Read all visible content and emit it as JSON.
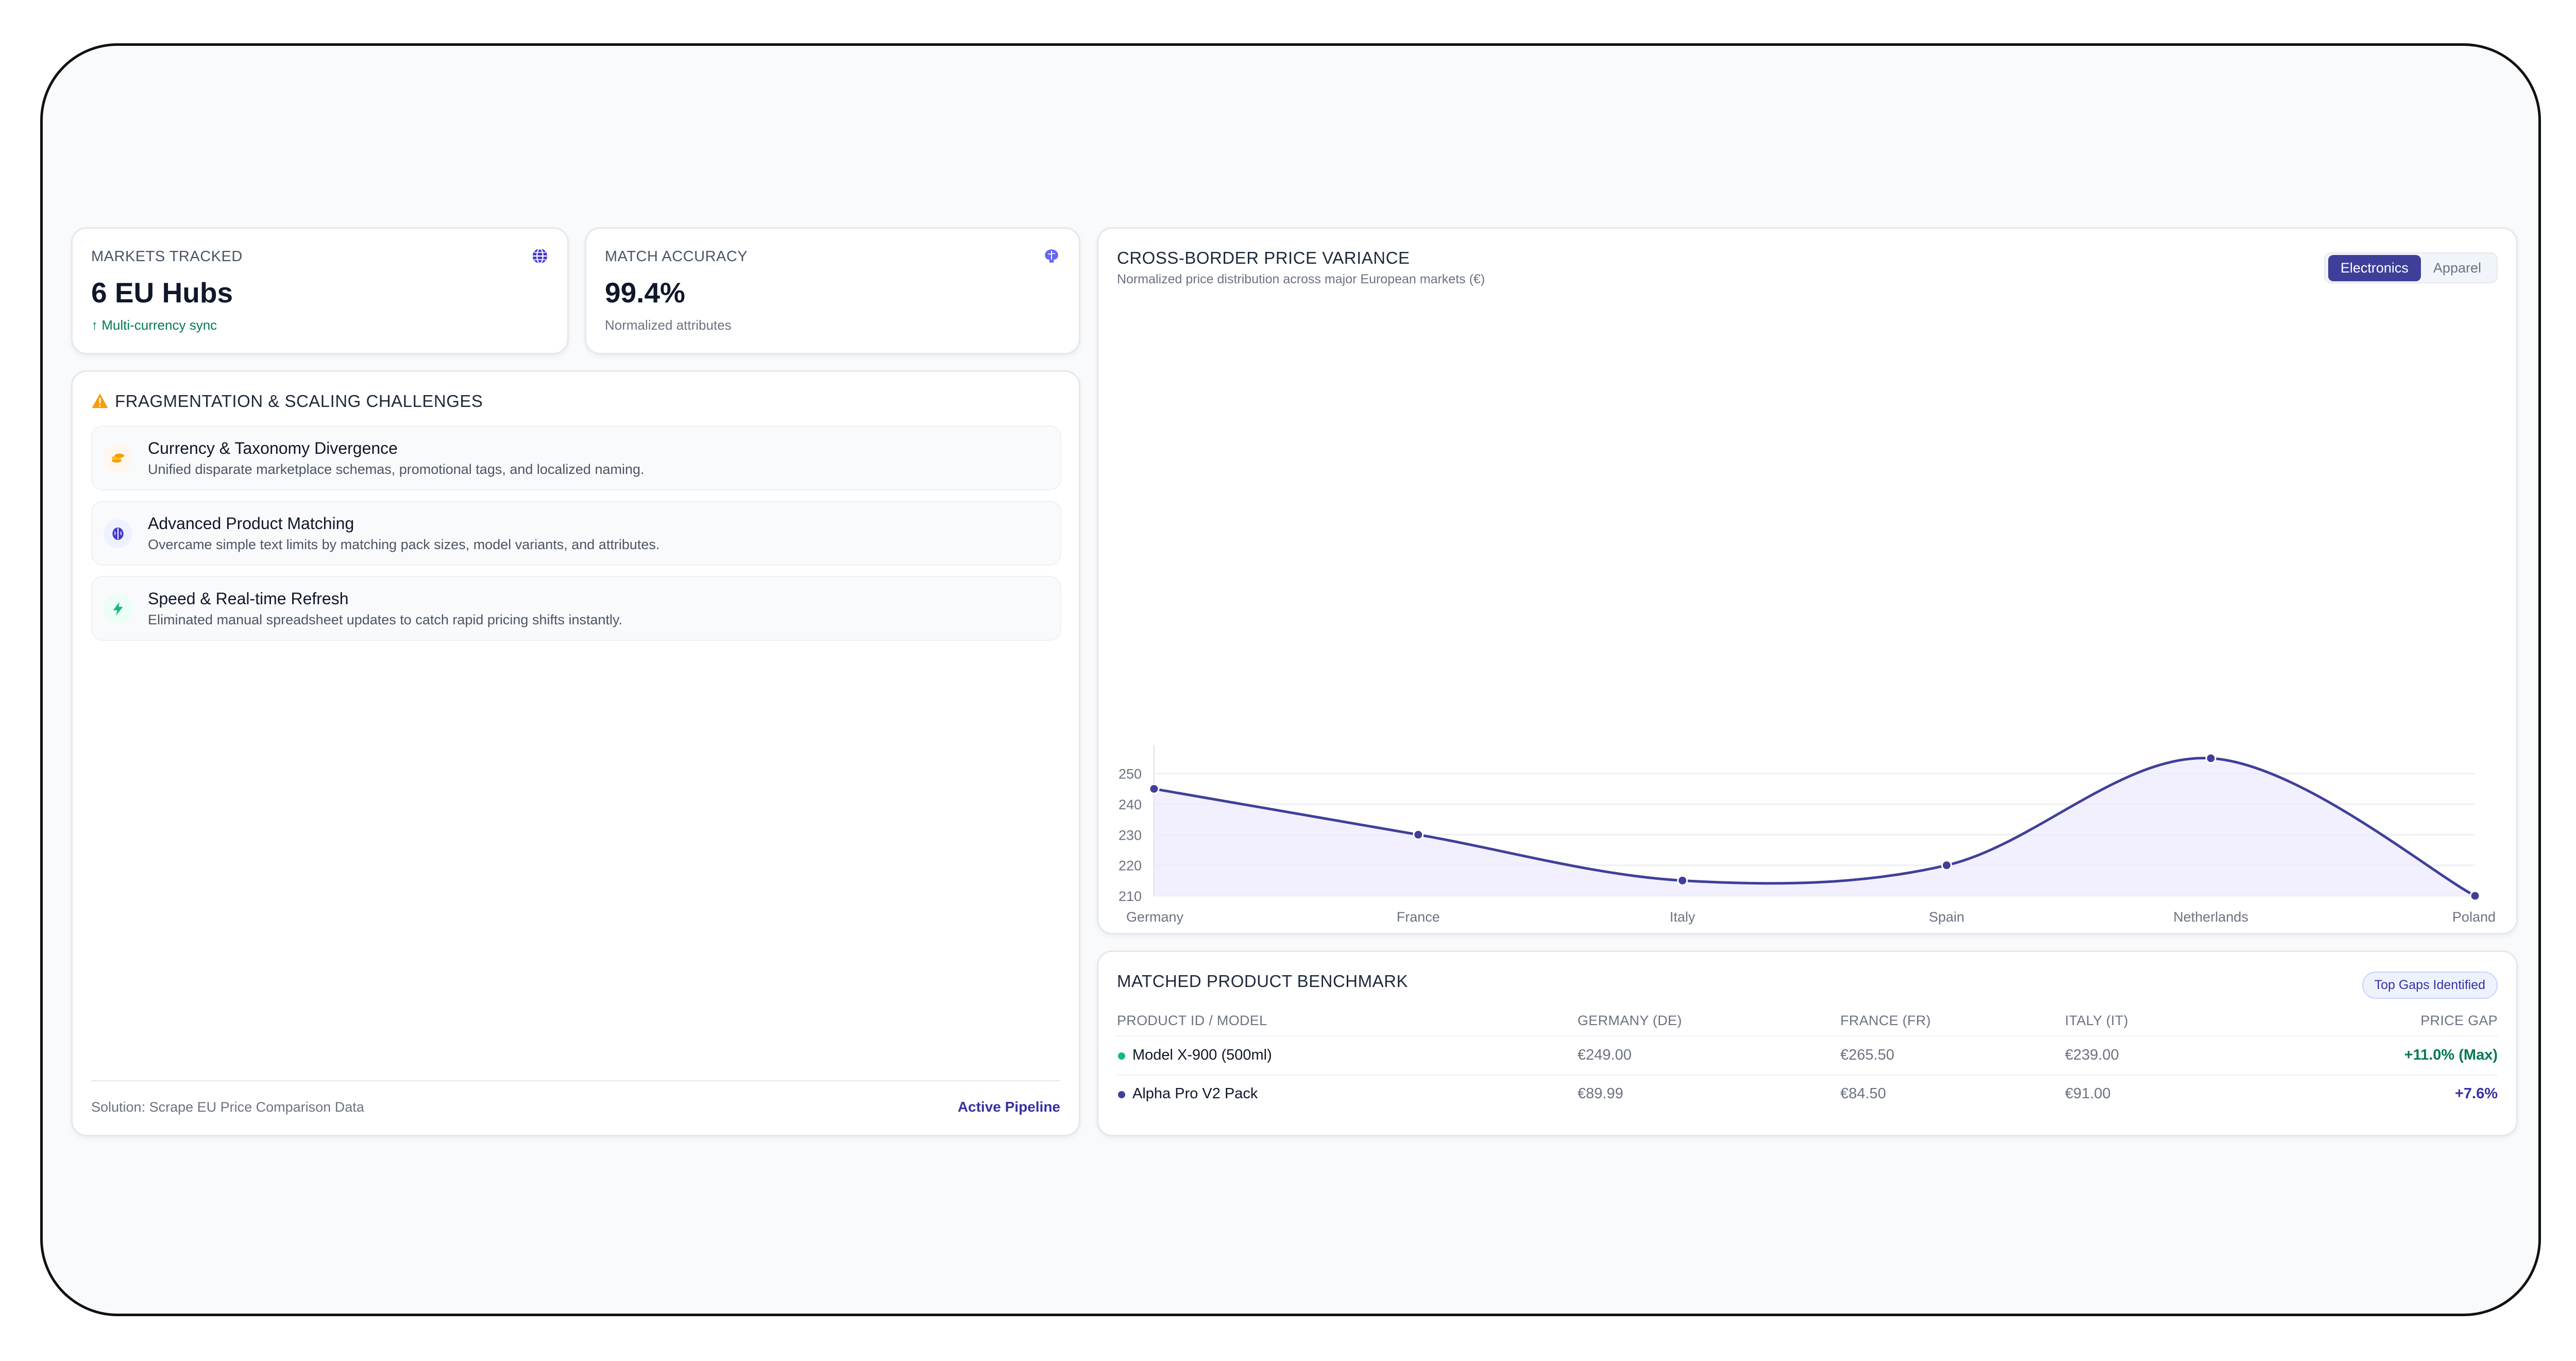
{
  "kpis": [
    {
      "label": "MARKETS TRACKED",
      "value": "6 EU Hubs",
      "sub": "↑ Multi-currency sync",
      "icon": "globe-icon"
    },
    {
      "label": "MATCH ACCURACY",
      "value": "99.4%",
      "sub": "Normalized attributes",
      "icon": "brain-icon"
    }
  ],
  "challenges": {
    "title": "FRAGMENTATION & SCALING CHALLENGES",
    "items": [
      {
        "title": "Currency & Taxonomy Divergence",
        "desc": "Unified disparate marketplace schemas, promotional tags, and localized naming.",
        "icon": "coins-icon"
      },
      {
        "title": "Advanced Product Matching",
        "desc": "Overcame simple text limits by matching pack sizes, model variants, and attributes.",
        "icon": "brain-icon"
      },
      {
        "title": "Speed & Real-time Refresh",
        "desc": "Eliminated manual spreadsheet updates to catch rapid pricing shifts instantly.",
        "icon": "bolt-icon"
      }
    ],
    "footer_left": "Solution: Scrape EU Price Comparison Data",
    "footer_right": "Active Pipeline"
  },
  "variance": {
    "title": "CROSS-BORDER PRICE VARIANCE",
    "subtitle": "Normalized price distribution across major European markets (€)",
    "tabs": [
      "Electronics",
      "Apparel"
    ],
    "active_tab": "Electronics"
  },
  "chart_data": {
    "type": "area",
    "categories": [
      "Germany",
      "France",
      "Italy",
      "Spain",
      "Netherlands",
      "Poland"
    ],
    "values": [
      245,
      230,
      215,
      220,
      255,
      210
    ],
    "yticks": [
      210,
      220,
      230,
      240,
      250
    ],
    "ylim": [
      210,
      255
    ],
    "grid": true,
    "color": "#3f3f9a",
    "fill": "#ede9fe"
  },
  "benchmark": {
    "title": "MATCHED PRODUCT BENCHMARK",
    "badge": "Top Gaps Identified",
    "columns": [
      "PRODUCT ID / MODEL",
      "GERMANY (DE)",
      "FRANCE (FR)",
      "ITALY (IT)",
      "PRICE GAP"
    ],
    "rows": [
      {
        "model": "Model X-900 (500ml)",
        "de": "€249.00",
        "fr": "€265.50",
        "it": "€239.00",
        "gap": "+11.0% (Max)",
        "dot_color": "#10b981",
        "gap_color": "#047857"
      },
      {
        "model": "Alpha Pro V2 Pack",
        "de": "€89.99",
        "fr": "€84.50",
        "it": "€91.00",
        "gap": "+7.6%",
        "dot_color": "#3f3f9a",
        "gap_color": "#3730a3"
      }
    ]
  }
}
